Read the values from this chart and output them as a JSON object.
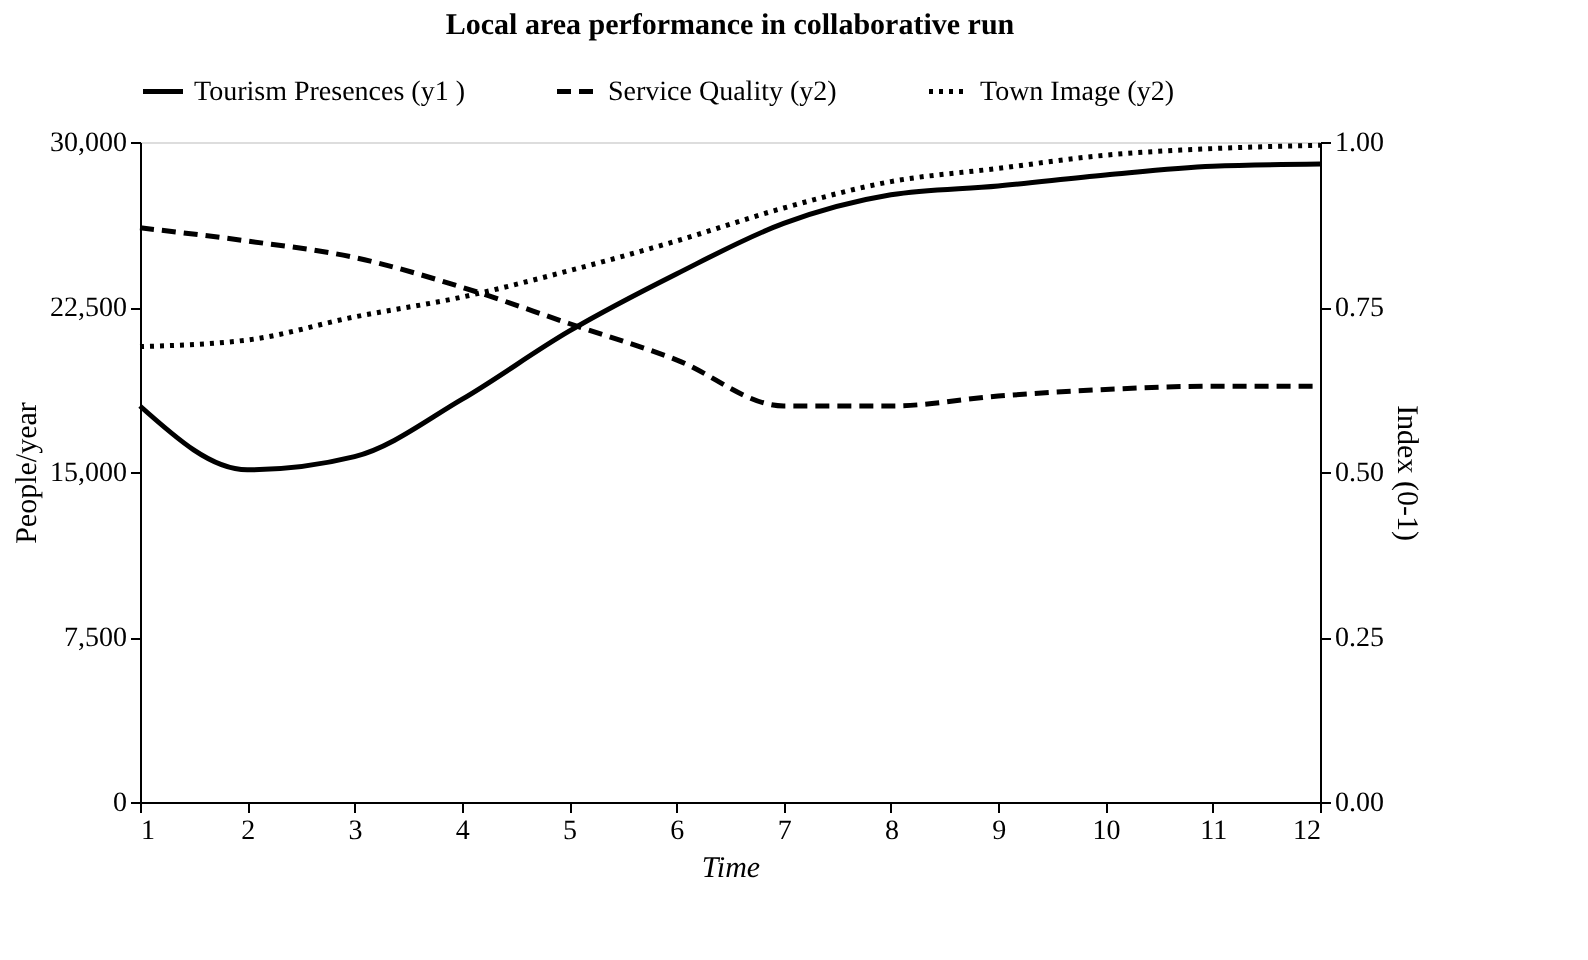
{
  "chart_data": {
    "type": "line",
    "title": "Local area performance in collaborative run",
    "xlabel": "Time",
    "ylabel": "People/year",
    "y2label": "Index (0-1)",
    "x": [
      1,
      2,
      3,
      4,
      5,
      6,
      7,
      8,
      9,
      10,
      11,
      12
    ],
    "series": [
      {
        "name": "Tourism Presences (y1 )",
        "color": "#000000",
        "line_style": "solid",
        "values": [
          18000,
          15100,
          15700,
          18300,
          21400,
          24000,
          26300,
          27600,
          28000,
          28500,
          28900,
          29000
        ]
      },
      {
        "name": "Service Quality (y2)",
        "color": "#000000",
        "line_style": "dashed",
        "axis": "y2",
        "values": [
          0.87,
          0.85,
          0.825,
          0.78,
          0.725,
          0.67,
          0.6,
          0.6,
          0.615,
          0.625,
          0.63,
          0.63
        ]
      },
      {
        "name": "Town Image (y2)",
        "color": "#000000",
        "line_style": "dotted",
        "axis": "y2",
        "values": [
          0.69,
          0.7,
          0.735,
          0.765,
          0.805,
          0.85,
          0.9,
          0.94,
          0.96,
          0.98,
          0.99,
          0.995
        ]
      }
    ],
    "xlim": [
      1,
      12
    ],
    "xticks": [
      1,
      2,
      3,
      4,
      5,
      6,
      7,
      8,
      9,
      10,
      11,
      12
    ],
    "ylim": [
      0,
      30000
    ],
    "yticks": [
      0,
      {
        "value": 7500,
        "label": "7,500"
      },
      {
        "value": 15000,
        "label": "15,000"
      },
      {
        "value": 22500,
        "label": "22,500"
      },
      {
        "value": 30000,
        "label": "30,000"
      }
    ],
    "y2lim": [
      0,
      1
    ],
    "y2ticks": [
      {
        "value": 0,
        "label": "0.00"
      },
      0.25,
      {
        "value": 0.5,
        "label": "0.50"
      },
      0.75,
      {
        "value": 1,
        "label": "1.00"
      }
    ],
    "grid": false,
    "legend": "top",
    "marker": "none"
  }
}
